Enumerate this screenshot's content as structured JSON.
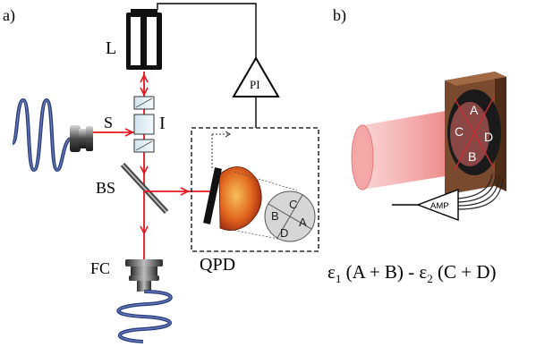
{
  "panel_a": {
    "label": "a)",
    "laser_label": "L",
    "pi_label": "PI",
    "isolator_label": "I",
    "source_label": "S",
    "beamsplitter_label": "BS",
    "fiber_coupler_label": "FC",
    "qpd_label": "QPD",
    "quadrants": [
      "A",
      "B",
      "C",
      "D"
    ]
  },
  "panel_b": {
    "label": "b)",
    "amp_label": "AMP",
    "quadrants": [
      "A",
      "B",
      "C",
      "D"
    ],
    "formula": {
      "eps1": "ε",
      "sub1": "1",
      "mid": " (A + B) - ",
      "eps2": "ε",
      "sub2": "2",
      "tail": " (C + D)"
    }
  },
  "colors": {
    "beam": "#e8141e",
    "fiber": "#2a3d7a",
    "board": "#7a4a2e",
    "glow": "#f08a8a"
  }
}
